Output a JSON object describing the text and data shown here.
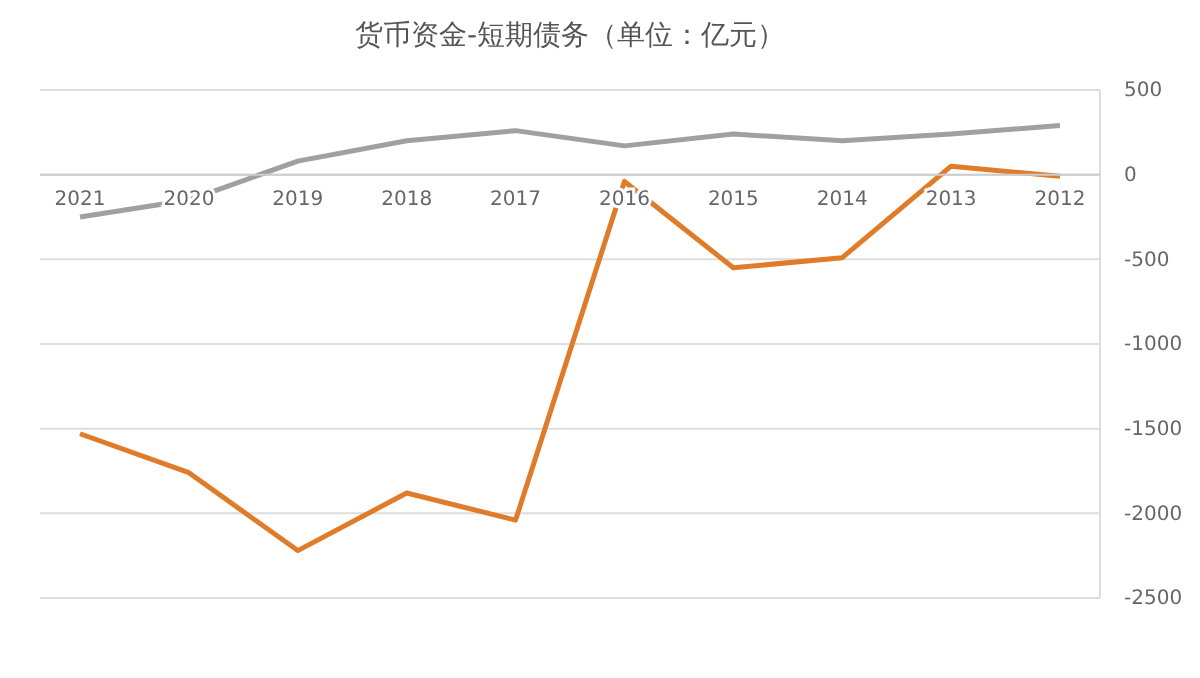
{
  "chart_data": {
    "type": "line",
    "title": "货币资金-短期债务（单位：亿元）",
    "categories": [
      "2021",
      "2020",
      "2019",
      "2018",
      "2017",
      "2016",
      "2015",
      "2014",
      "2013",
      "2012"
    ],
    "series": [
      {
        "color": "#a0a0a0",
        "values": [
          -250,
          -150,
          80,
          200,
          260,
          170,
          240,
          200,
          240,
          290
        ]
      },
      {
        "color": "#e07b2a",
        "values": [
          -1530,
          -1760,
          -2220,
          -1880,
          -2040,
          -40,
          -550,
          -490,
          50,
          -10
        ]
      }
    ],
    "ylim": [
      -2500,
      500
    ],
    "yticks": [
      500,
      0,
      -500,
      -1000,
      -1500,
      -2000,
      -2500
    ],
    "grid": "y",
    "marker": "none",
    "line_style": "solid"
  }
}
